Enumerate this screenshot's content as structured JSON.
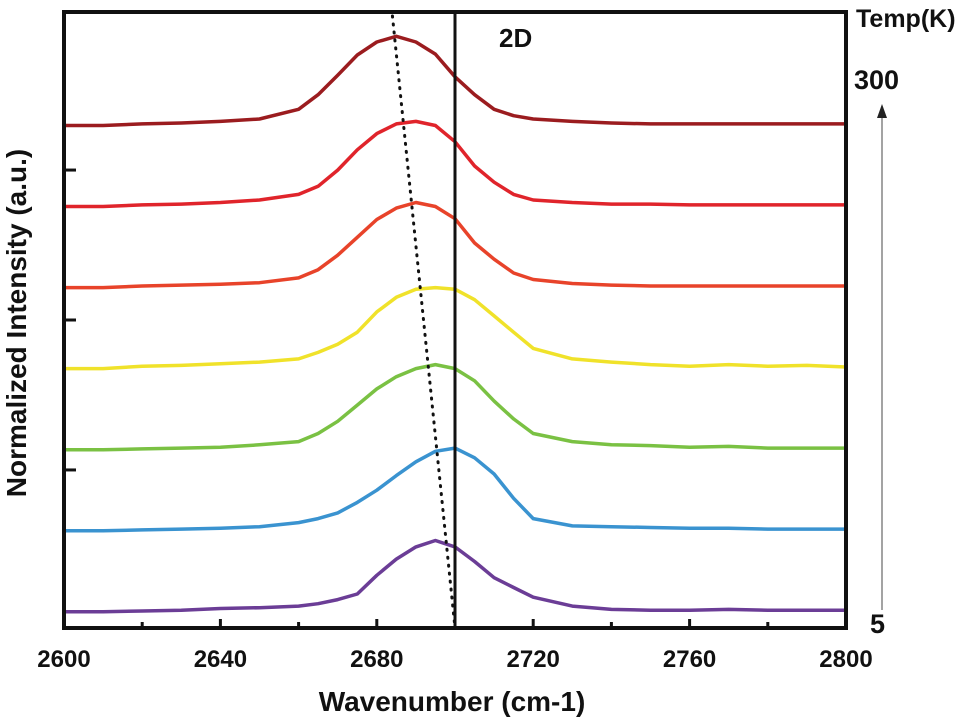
{
  "chart_data": {
    "type": "line",
    "title": "",
    "annotation": "2D",
    "xlabel": "Wavenumber (cm-1)",
    "ylabel": "Normalized Intensity (a.u.)",
    "xlim": [
      2600,
      2800
    ],
    "x_ticks": [
      2600,
      2640,
      2680,
      2720,
      2760,
      2800
    ],
    "x_tick_labels": [
      "2600",
      "2640",
      "2680",
      "2720",
      "2760",
      "2800"
    ],
    "ylim": [
      -0.2,
      7.4
    ],
    "y_axis_tick_values": [
      1.75,
      3.6,
      5.45
    ],
    "grid": false,
    "legend": {
      "title": "Temp(K)",
      "top_label": "300",
      "bottom_label": "5",
      "placement": "right, arrow pointing upward (5 K bottom to 300 K top)"
    },
    "reference_line_x": 2700,
    "peak_trend_dotted": [
      [
        2684,
        7.35
      ],
      [
        2700,
        -0.2
      ]
    ],
    "x": [
      2600,
      2610,
      2620,
      2630,
      2640,
      2650,
      2660,
      2665,
      2670,
      2675,
      2680,
      2685,
      2690,
      2695,
      2700,
      2705,
      2710,
      2715,
      2720,
      2730,
      2740,
      2750,
      2760,
      2770,
      2780,
      2790,
      2800
    ],
    "series": [
      {
        "name": "300 K",
        "color": "#9b1c1f",
        "offset": 6.0,
        "values": [
          0.0,
          0.0,
          0.02,
          0.03,
          0.05,
          0.08,
          0.2,
          0.38,
          0.62,
          0.87,
          1.03,
          1.1,
          1.03,
          0.88,
          0.6,
          0.38,
          0.2,
          0.12,
          0.08,
          0.05,
          0.03,
          0.02,
          0.02,
          0.02,
          0.02,
          0.02,
          0.02
        ]
      },
      {
        "name": "",
        "color": "#e0242b",
        "offset": 5.0,
        "values": [
          0.0,
          0.0,
          0.02,
          0.03,
          0.05,
          0.08,
          0.15,
          0.25,
          0.45,
          0.7,
          0.9,
          1.02,
          1.05,
          1.0,
          0.8,
          0.5,
          0.3,
          0.15,
          0.08,
          0.05,
          0.03,
          0.03,
          0.02,
          0.02,
          0.02,
          0.02,
          0.02
        ]
      },
      {
        "name": "",
        "color": "#e8432a",
        "offset": 4.0,
        "values": [
          0.0,
          0.0,
          0.02,
          0.03,
          0.04,
          0.06,
          0.12,
          0.22,
          0.4,
          0.62,
          0.84,
          0.98,
          1.05,
          1.0,
          0.85,
          0.55,
          0.35,
          0.18,
          0.1,
          0.05,
          0.03,
          0.02,
          0.02,
          0.02,
          0.02,
          0.02,
          0.02
        ]
      },
      {
        "name": "",
        "color": "#f0e22a",
        "offset": 3.0,
        "values": [
          0.0,
          0.0,
          0.03,
          0.04,
          0.06,
          0.08,
          0.12,
          0.2,
          0.3,
          0.45,
          0.7,
          0.88,
          0.98,
          1.0,
          0.98,
          0.85,
          0.65,
          0.45,
          0.25,
          0.12,
          0.08,
          0.05,
          0.03,
          0.05,
          0.03,
          0.04,
          0.02
        ]
      },
      {
        "name": "",
        "color": "#7ac143",
        "offset": 2.0,
        "values": [
          0.0,
          0.0,
          0.01,
          0.02,
          0.03,
          0.06,
          0.1,
          0.2,
          0.35,
          0.55,
          0.75,
          0.9,
          1.0,
          1.05,
          1.0,
          0.85,
          0.6,
          0.38,
          0.2,
          0.1,
          0.06,
          0.05,
          0.03,
          0.04,
          0.02,
          0.02,
          0.02
        ]
      },
      {
        "name": "",
        "color": "#3a93d0",
        "offset": 1.0,
        "values": [
          0.0,
          0.0,
          0.01,
          0.02,
          0.03,
          0.05,
          0.1,
          0.15,
          0.22,
          0.35,
          0.5,
          0.68,
          0.85,
          0.98,
          1.02,
          0.9,
          0.7,
          0.4,
          0.15,
          0.06,
          0.05,
          0.04,
          0.03,
          0.03,
          0.02,
          0.02,
          0.02
        ]
      },
      {
        "name": "5 K",
        "color": "#6b3d96",
        "offset": 0.0,
        "values": [
          0.0,
          0.0,
          0.01,
          0.02,
          0.04,
          0.05,
          0.07,
          0.1,
          0.15,
          0.22,
          0.45,
          0.65,
          0.8,
          0.88,
          0.8,
          0.62,
          0.42,
          0.3,
          0.18,
          0.07,
          0.03,
          0.02,
          0.02,
          0.03,
          0.02,
          0.02,
          0.02
        ]
      }
    ]
  }
}
